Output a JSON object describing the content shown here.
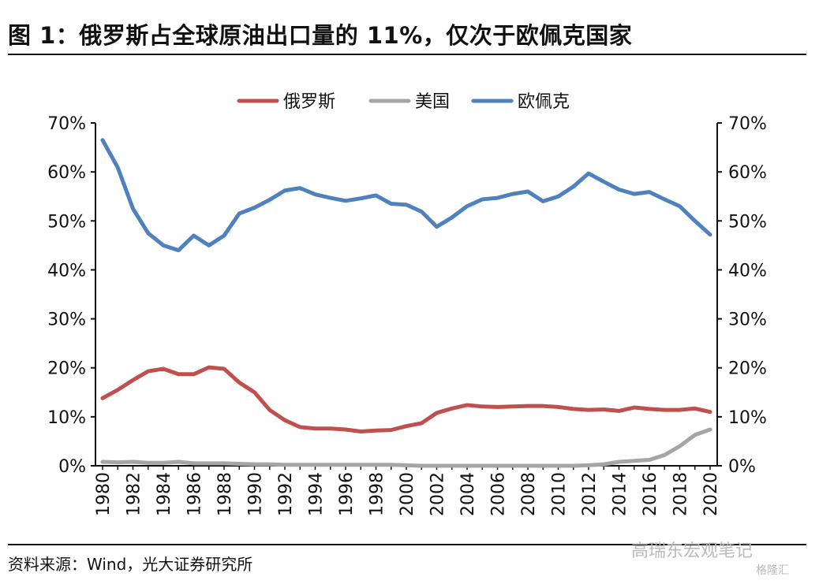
{
  "title": "图 1：俄罗斯占全球原油出口量的 11%，仅次于欧佩克国家",
  "source": "资料来源：Wind，光大证券研究所",
  "watermark": [
    "高瑞东宏观笔记",
    "格隆汇"
  ],
  "chart_data": {
    "type": "line",
    "title": "图 1：俄罗斯占全球原油出口量的 11%，仅次于欧佩克国家",
    "xlabel": "",
    "ylabel": "",
    "ylim": [
      0,
      70
    ],
    "yticks": [
      "0%",
      "10%",
      "20%",
      "30%",
      "40%",
      "50%",
      "60%",
      "70%"
    ],
    "secondary_yticks": [
      "0%",
      "10%",
      "20%",
      "30%",
      "40%",
      "50%",
      "60%",
      "70%"
    ],
    "x": [
      1980,
      1981,
      1982,
      1983,
      1984,
      1985,
      1986,
      1987,
      1988,
      1989,
      1990,
      1991,
      1992,
      1993,
      1994,
      1995,
      1996,
      1997,
      1998,
      1999,
      2000,
      2001,
      2002,
      2003,
      2004,
      2005,
      2006,
      2007,
      2008,
      2009,
      2010,
      2011,
      2012,
      2013,
      2014,
      2015,
      2016,
      2017,
      2018,
      2019,
      2020
    ],
    "xticks": [
      "1980",
      "1982",
      "1984",
      "1986",
      "1988",
      "1990",
      "1992",
      "1994",
      "1996",
      "1998",
      "2000",
      "2002",
      "2004",
      "2006",
      "2008",
      "2010",
      "2012",
      "2014",
      "2016",
      "2018",
      "2020"
    ],
    "legend_position": "top",
    "series": [
      {
        "name": "俄罗斯",
        "color": "#c0504d",
        "values": [
          13.8,
          15.5,
          17.5,
          19.3,
          19.8,
          18.7,
          18.7,
          20.1,
          19.8,
          17.0,
          15.0,
          11.4,
          9.3,
          7.9,
          7.6,
          7.6,
          7.4,
          7.0,
          7.2,
          7.3,
          8.1,
          8.7,
          10.8,
          11.7,
          12.4,
          12.1,
          12.0,
          12.1,
          12.2,
          12.2,
          12.0,
          11.6,
          11.4,
          11.5,
          11.2,
          11.9,
          11.6,
          11.4,
          11.4,
          11.7,
          11.0
        ]
      },
      {
        "name": "美国",
        "color": "#a5a5a5",
        "values": [
          0.8,
          0.7,
          0.8,
          0.6,
          0.6,
          0.8,
          0.5,
          0.5,
          0.5,
          0.4,
          0.3,
          0.3,
          0.2,
          0.2,
          0.2,
          0.2,
          0.2,
          0.2,
          0.2,
          0.2,
          0.1,
          0.0,
          0.0,
          0.0,
          0.0,
          0.0,
          0.0,
          0.0,
          0.0,
          0.0,
          0.0,
          0.0,
          0.1,
          0.3,
          0.8,
          1.0,
          1.2,
          2.2,
          4.0,
          6.3,
          7.4
        ]
      },
      {
        "name": "欧佩克",
        "color": "#4f81bd",
        "values": [
          66.5,
          60.9,
          52.5,
          47.5,
          45.0,
          44.0,
          47.0,
          45.0,
          47.0,
          51.5,
          52.7,
          54.3,
          56.2,
          56.7,
          55.4,
          54.7,
          54.1,
          54.6,
          55.2,
          53.5,
          53.3,
          51.9,
          48.8,
          50.7,
          53.0,
          54.4,
          54.7,
          55.5,
          56.0,
          54.0,
          55.0,
          57.0,
          59.7,
          58.0,
          56.4,
          55.5,
          55.9,
          54.4,
          53.0,
          50.0,
          47.2
        ]
      }
    ]
  }
}
